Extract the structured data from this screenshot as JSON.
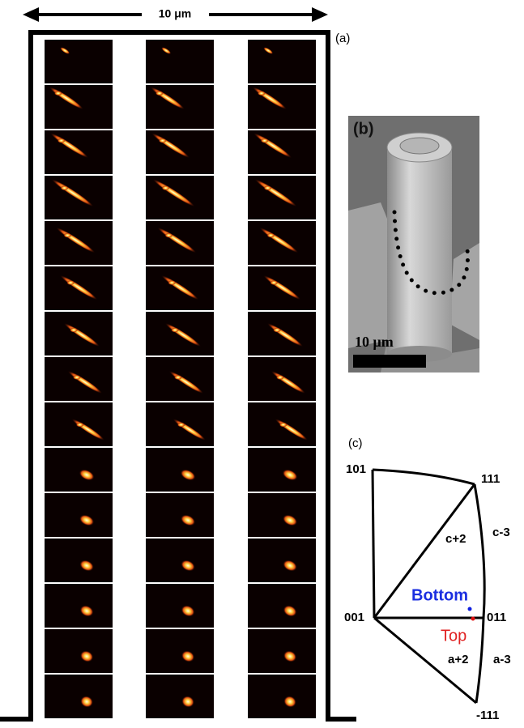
{
  "panel_a": {
    "label": "(a)",
    "scale_label": "10 μm"
  },
  "panel_b": {
    "label": "(b)",
    "scale_label": "10 μm"
  },
  "panel_c": {
    "label": "(c)",
    "nodes": [
      "101",
      "111",
      "001",
      "011",
      "-111"
    ],
    "regions": [
      "c+2",
      "c-3",
      "a+2",
      "a-3"
    ],
    "points": [
      "Bottom",
      "Top"
    ]
  }
}
